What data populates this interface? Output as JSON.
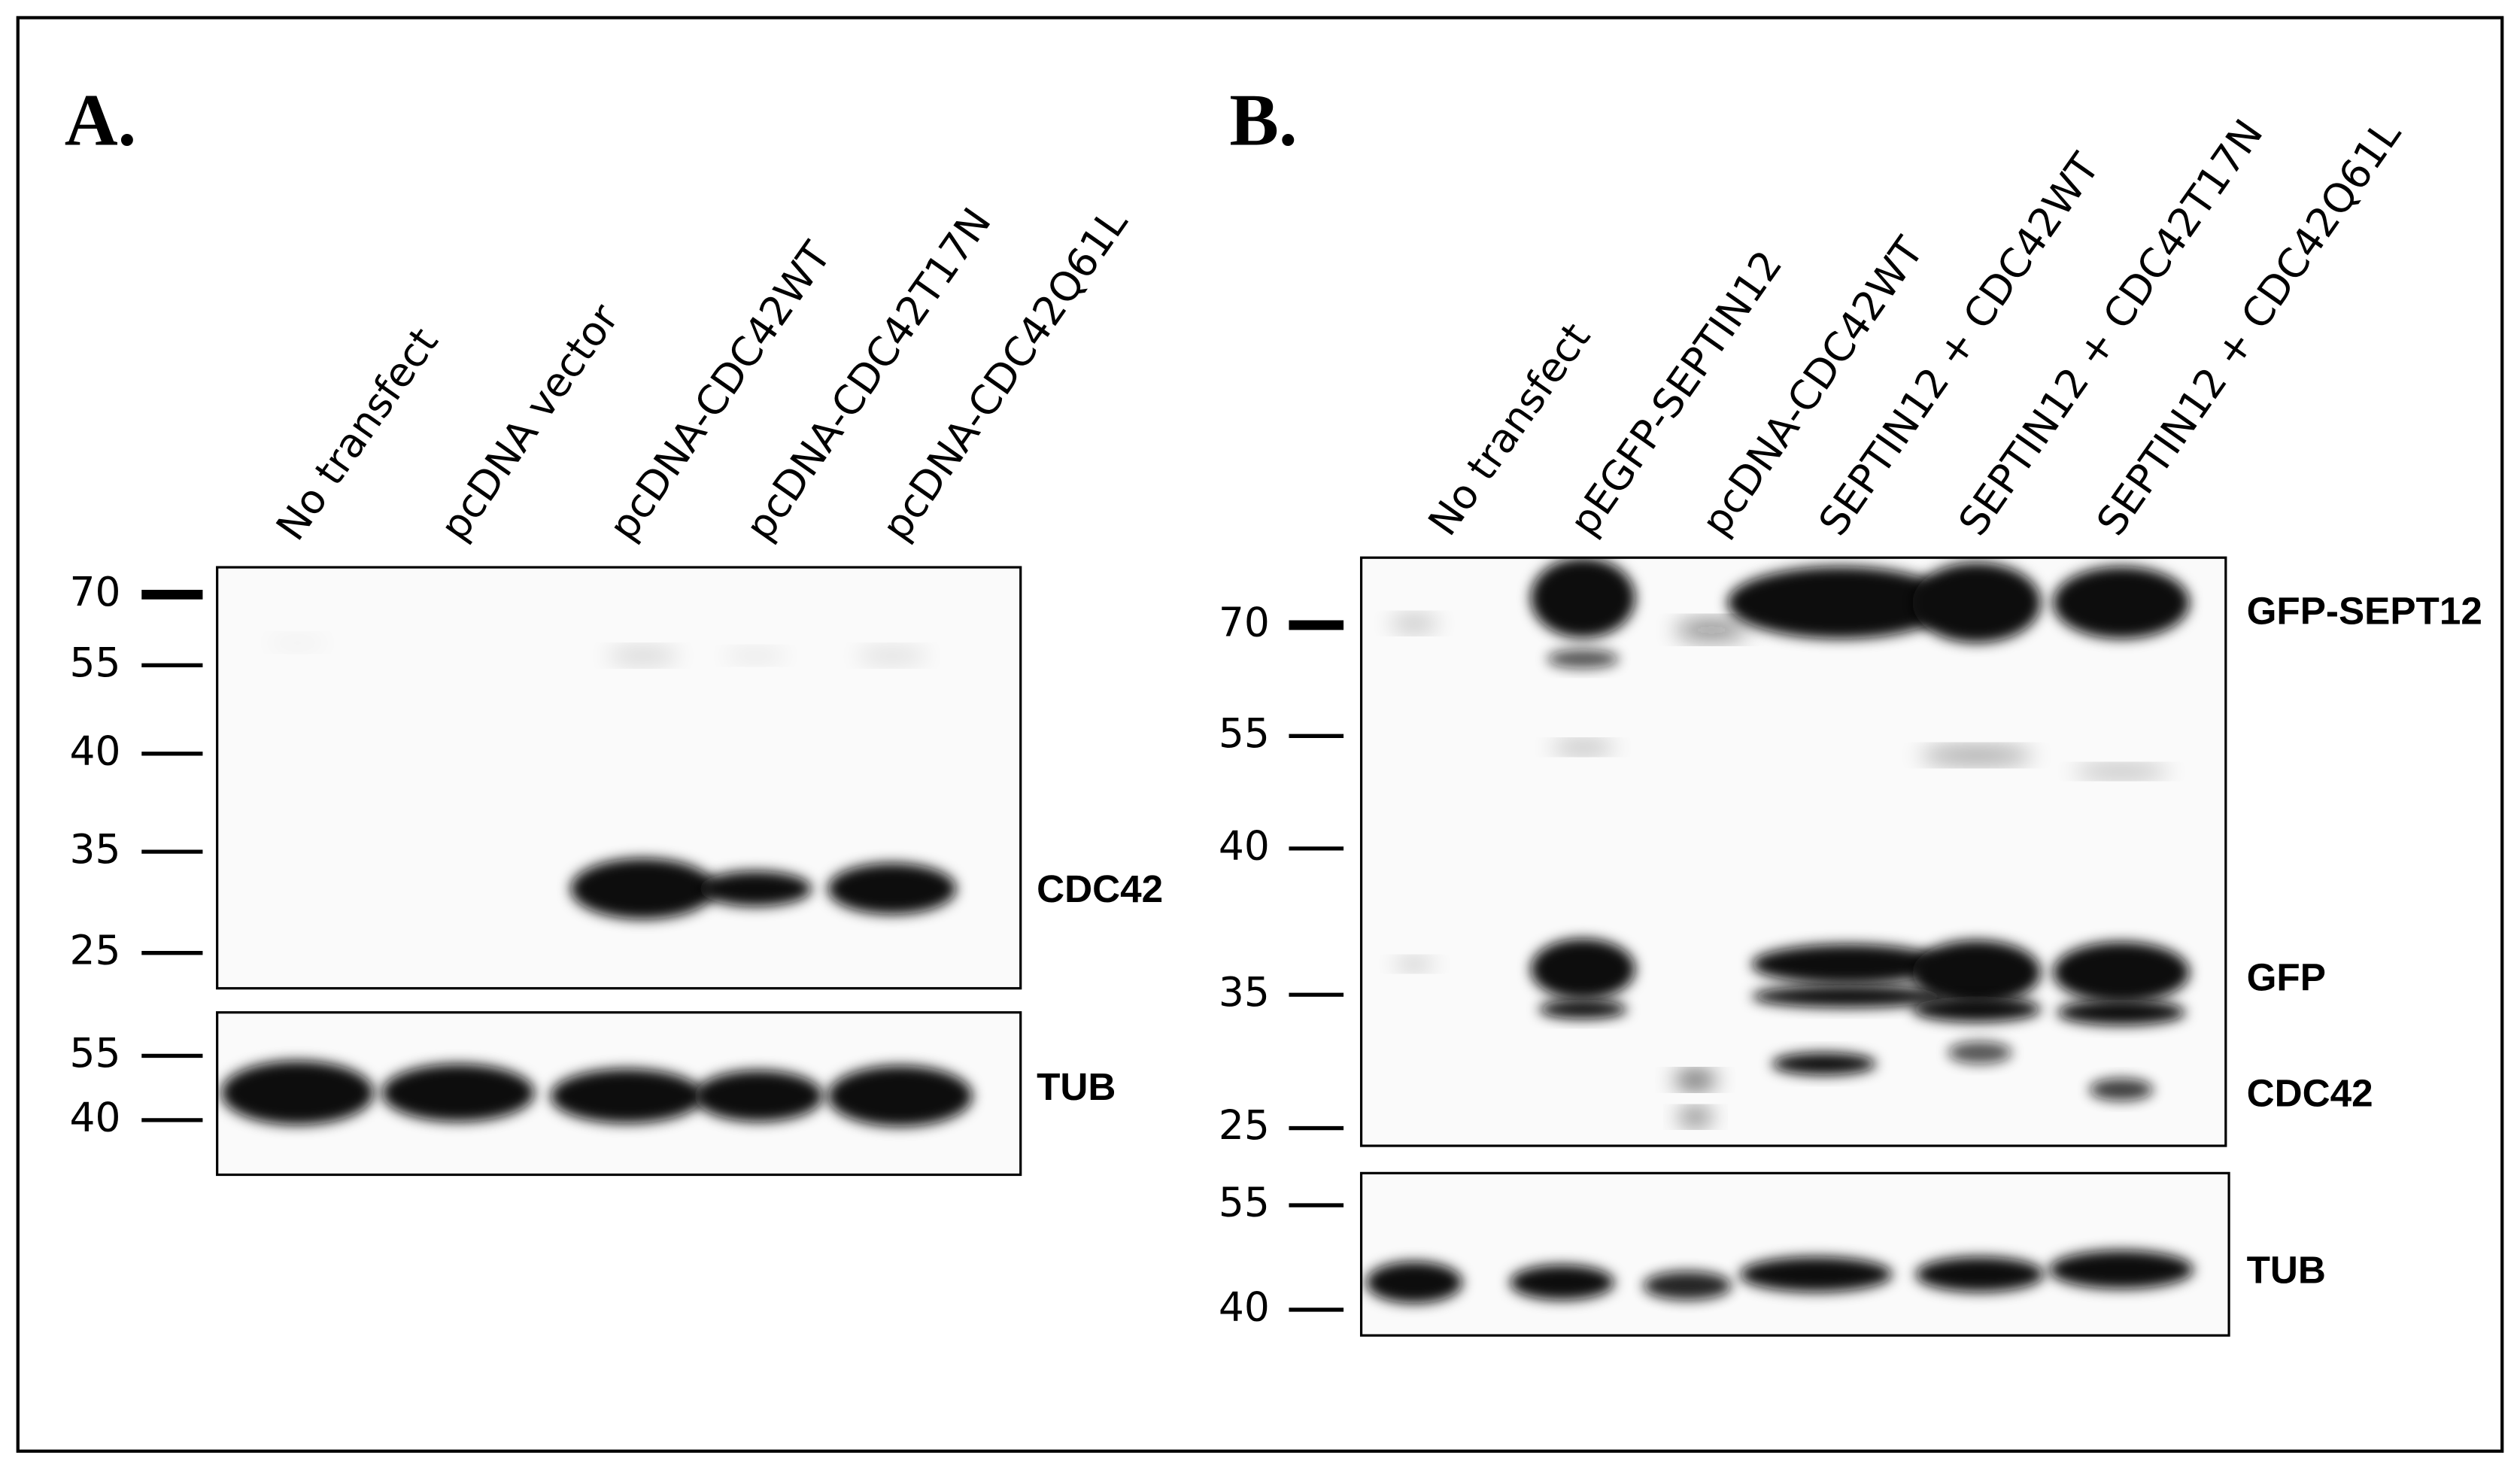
{
  "panels": [
    {
      "label": "A.",
      "lanes": [
        "No transfect",
        "pcDNA vector",
        "pcDNA-CDC42WT",
        "pcDNA-CDC42T17N",
        "pcDNA-CDC42Q61L"
      ],
      "blots": [
        {
          "markers": [
            "70",
            "55",
            "40",
            "35",
            "25"
          ],
          "bands": [
            "CDC42"
          ]
        },
        {
          "markers": [
            "55",
            "40"
          ],
          "bands": [
            "TUB"
          ]
        }
      ]
    },
    {
      "label": "B.",
      "lanes": [
        "No transfect",
        "pEGFP-SEPTIN12",
        "pcDNA-CDC42WT",
        "SEPTIN12 + CDC42WT",
        "SEPTIN12 + CDC42T17N",
        "SEPTIN12 + CDC42Q61L"
      ],
      "blots": [
        {
          "markers": [
            "70",
            "55",
            "40",
            "35",
            "25"
          ],
          "bands": [
            "GFP-SEPT12",
            "GFP",
            "CDC42"
          ]
        },
        {
          "markers": [
            "55",
            "40"
          ],
          "bands": [
            "TUB"
          ]
        }
      ]
    }
  ]
}
